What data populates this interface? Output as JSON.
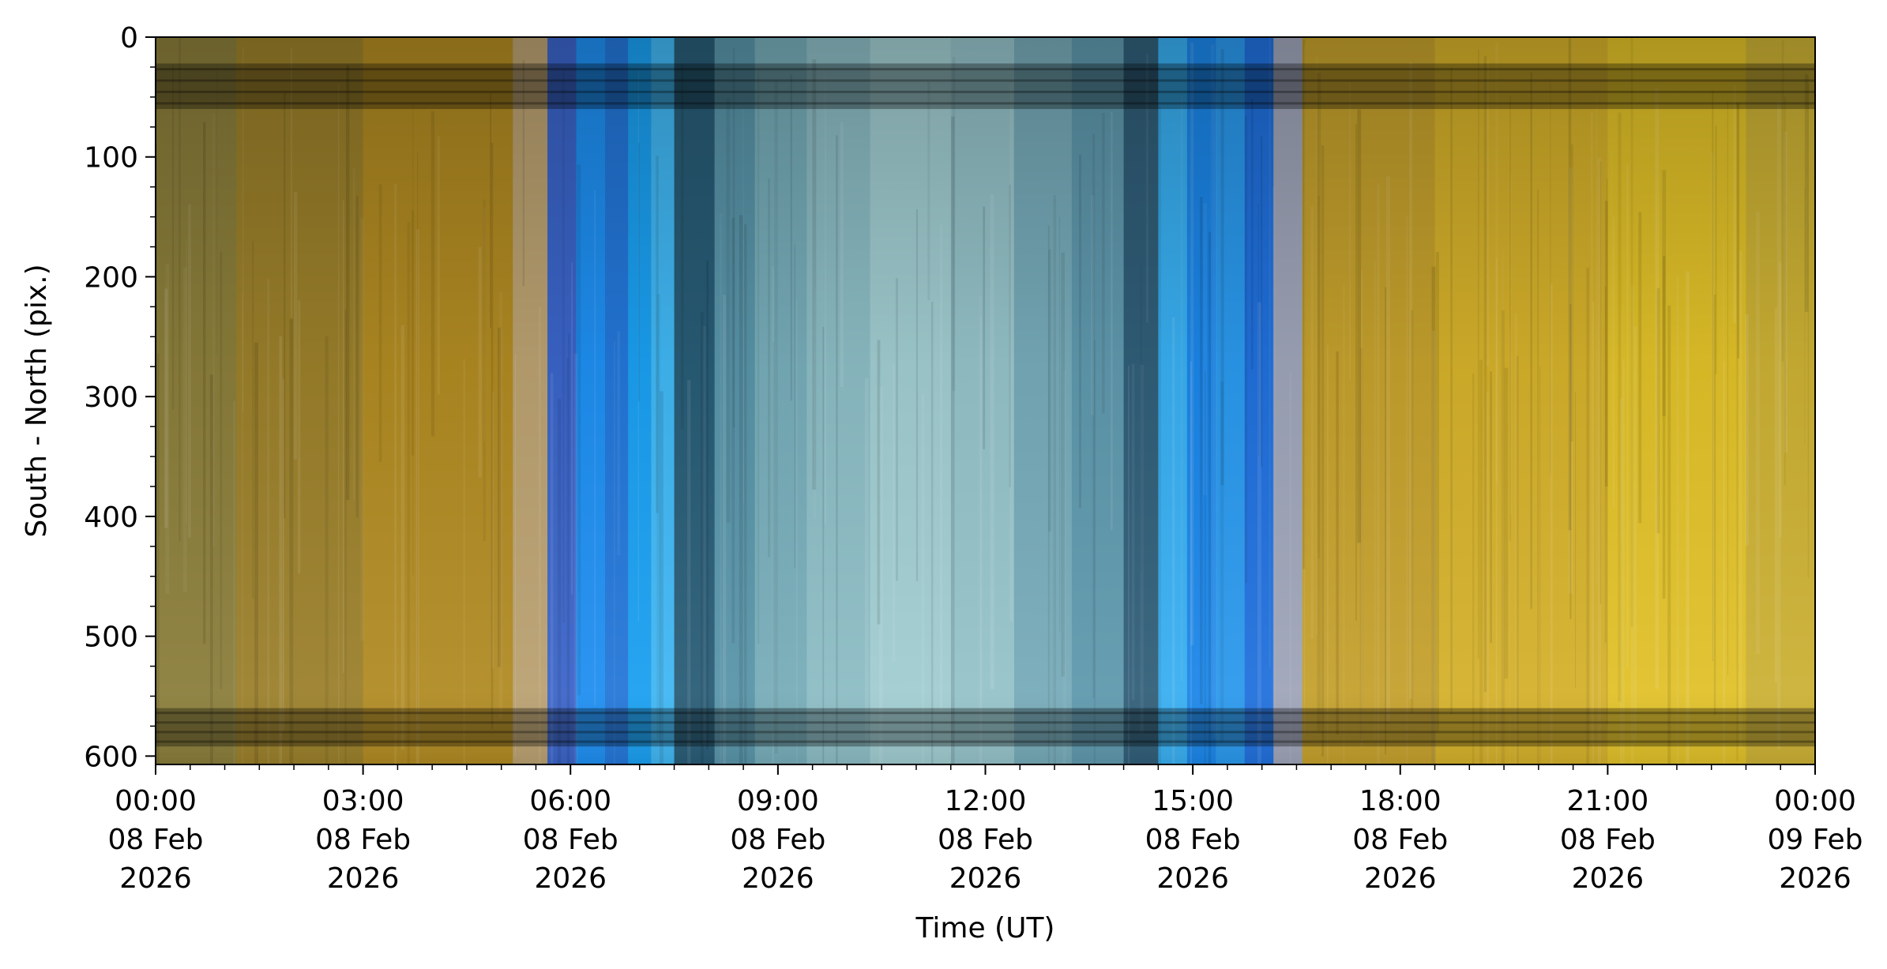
{
  "chart_data": {
    "type": "heatmap",
    "title": "",
    "xlabel": "Time (UT)",
    "ylabel": "South - North (pix.)",
    "x_range": [
      "2026-02-08T00:00",
      "2026-02-09T00:00"
    ],
    "ylim": [
      607,
      0
    ],
    "y_inverted": true,
    "grid": false,
    "x_ticks": [
      {
        "time": "2026-02-08T00:00",
        "lines": [
          "00:00",
          "08 Feb",
          "2026"
        ]
      },
      {
        "time": "2026-02-08T03:00",
        "lines": [
          "03:00",
          "08 Feb",
          "2026"
        ]
      },
      {
        "time": "2026-02-08T06:00",
        "lines": [
          "06:00",
          "08 Feb",
          "2026"
        ]
      },
      {
        "time": "2026-02-08T09:00",
        "lines": [
          "09:00",
          "08 Feb",
          "2026"
        ]
      },
      {
        "time": "2026-02-08T12:00",
        "lines": [
          "12:00",
          "08 Feb",
          "2026"
        ]
      },
      {
        "time": "2026-02-08T15:00",
        "lines": [
          "15:00",
          "08 Feb",
          "2026"
        ]
      },
      {
        "time": "2026-02-08T18:00",
        "lines": [
          "18:00",
          "08 Feb",
          "2026"
        ]
      },
      {
        "time": "2026-02-08T21:00",
        "lines": [
          "21:00",
          "08 Feb",
          "2026"
        ]
      },
      {
        "time": "2026-02-09T00:00",
        "lines": [
          "00:00",
          "09 Feb",
          "2026"
        ]
      }
    ],
    "y_ticks": [
      0,
      100,
      200,
      300,
      400,
      500,
      600
    ],
    "time_bands": [
      {
        "start": "2026-02-08T00:00",
        "end": "2026-02-08T01:10",
        "color": "#8a7d3a"
      },
      {
        "start": "2026-02-08T01:10",
        "end": "2026-02-08T03:00",
        "color": "#9a7f2a"
      },
      {
        "start": "2026-02-08T03:00",
        "end": "2026-02-08T05:10",
        "color": "#b08a22"
      },
      {
        "start": "2026-02-08T05:10",
        "end": "2026-02-08T05:40",
        "color": "#b9a070"
      },
      {
        "start": "2026-02-08T05:40",
        "end": "2026-02-08T06:05",
        "color": "#3a64c8"
      },
      {
        "start": "2026-02-08T06:05",
        "end": "2026-02-08T06:30",
        "color": "#1e8ef0"
      },
      {
        "start": "2026-02-08T06:30",
        "end": "2026-02-08T06:50",
        "color": "#2376d8"
      },
      {
        "start": "2026-02-08T06:50",
        "end": "2026-02-08T07:10",
        "color": "#1a9ff0"
      },
      {
        "start": "2026-02-08T07:10",
        "end": "2026-02-08T07:30",
        "color": "#40b6f2"
      },
      {
        "start": "2026-02-08T07:30",
        "end": "2026-02-08T08:05",
        "color": "#285c76"
      },
      {
        "start": "2026-02-08T08:05",
        "end": "2026-02-08T08:40",
        "color": "#5894a8"
      },
      {
        "start": "2026-02-08T08:40",
        "end": "2026-02-08T09:25",
        "color": "#76acb8"
      },
      {
        "start": "2026-02-08T09:25",
        "end": "2026-02-08T10:20",
        "color": "#8cbcc4"
      },
      {
        "start": "2026-02-08T10:20",
        "end": "2026-02-08T11:30",
        "color": "#a0ccd0"
      },
      {
        "start": "2026-02-08T11:30",
        "end": "2026-02-08T12:25",
        "color": "#94c2c8"
      },
      {
        "start": "2026-02-08T12:25",
        "end": "2026-02-08T13:15",
        "color": "#76aab8"
      },
      {
        "start": "2026-02-08T13:15",
        "end": "2026-02-08T14:00",
        "color": "#5e98ac"
      },
      {
        "start": "2026-02-08T14:00",
        "end": "2026-02-08T14:30",
        "color": "#305e78"
      },
      {
        "start": "2026-02-08T14:30",
        "end": "2026-02-08T14:55",
        "color": "#38aef0"
      },
      {
        "start": "2026-02-08T14:55",
        "end": "2026-02-08T15:20",
        "color": "#1b86e8"
      },
      {
        "start": "2026-02-08T15:20",
        "end": "2026-02-08T15:45",
        "color": "#2a98ec"
      },
      {
        "start": "2026-02-08T15:45",
        "end": "2026-02-08T16:10",
        "color": "#2070dc"
      },
      {
        "start": "2026-02-08T16:10",
        "end": "2026-02-08T16:35",
        "color": "#9ea4b8"
      },
      {
        "start": "2026-02-08T16:35",
        "end": "2026-02-08T18:30",
        "color": "#c4a02c"
      },
      {
        "start": "2026-02-08T18:30",
        "end": "2026-02-08T21:00",
        "color": "#d4b02a"
      },
      {
        "start": "2026-02-08T21:00",
        "end": "2026-02-08T23:00",
        "color": "#e0c028"
      },
      {
        "start": "2026-02-08T23:00",
        "end": "2026-02-09T00:00",
        "color": "#cbb034"
      }
    ],
    "dark_rows": [
      {
        "y_start": 22,
        "y_end": 60
      },
      {
        "y_start": 560,
        "y_end": 592
      }
    ]
  }
}
